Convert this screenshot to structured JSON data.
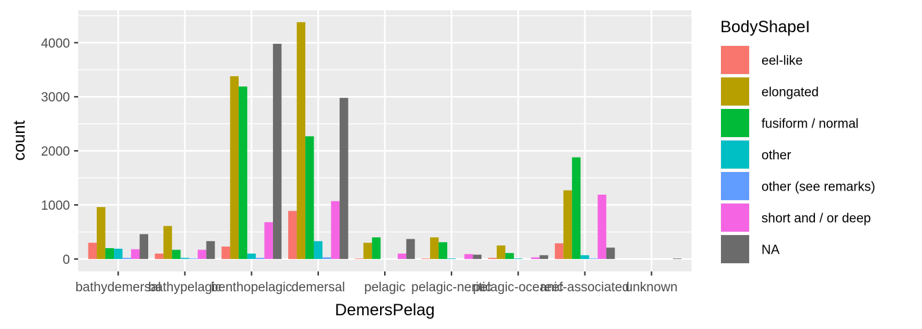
{
  "chart_data": {
    "type": "bar",
    "xlabel": "DemersPelag",
    "ylabel": "count",
    "ylim": [
      -230,
      4600
    ],
    "y_ticks": [
      0,
      1000,
      2000,
      3000,
      4000
    ],
    "grid": true,
    "legend_position": "right",
    "legend_title": "BodyShapeI",
    "categories": [
      "bathydemersal",
      "bathypelagic",
      "benthopelagic",
      "demersal",
      "pelagic",
      "pelagic-neritic",
      "pelagic-oceanic",
      "reef-associated",
      "unknown"
    ],
    "series": [
      {
        "name": "eel-like",
        "color": "#F8766D",
        "values": [
          300,
          100,
          230,
          890,
          10,
          10,
          20,
          290,
          0
        ]
      },
      {
        "name": "elongated",
        "color": "#B79F00",
        "values": [
          960,
          610,
          3380,
          4380,
          300,
          400,
          250,
          1270,
          0
        ]
      },
      {
        "name": "fusiform / normal",
        "color": "#00BA38",
        "values": [
          200,
          170,
          3190,
          2270,
          400,
          310,
          110,
          1880,
          0
        ]
      },
      {
        "name": "other",
        "color": "#00BFC4",
        "values": [
          190,
          20,
          100,
          330,
          0,
          10,
          10,
          70,
          0
        ]
      },
      {
        "name": "other (see remarks)",
        "color": "#619CFF",
        "values": [
          20,
          10,
          20,
          30,
          0,
          0,
          0,
          10,
          0
        ]
      },
      {
        "name": "short and / or deep",
        "color": "#F564E3",
        "values": [
          180,
          170,
          680,
          1070,
          100,
          90,
          30,
          1190,
          0
        ]
      },
      {
        "name": "NA",
        "color": "#6B6B6B",
        "values": [
          460,
          330,
          3980,
          2980,
          370,
          80,
          70,
          210,
          10
        ]
      }
    ]
  }
}
